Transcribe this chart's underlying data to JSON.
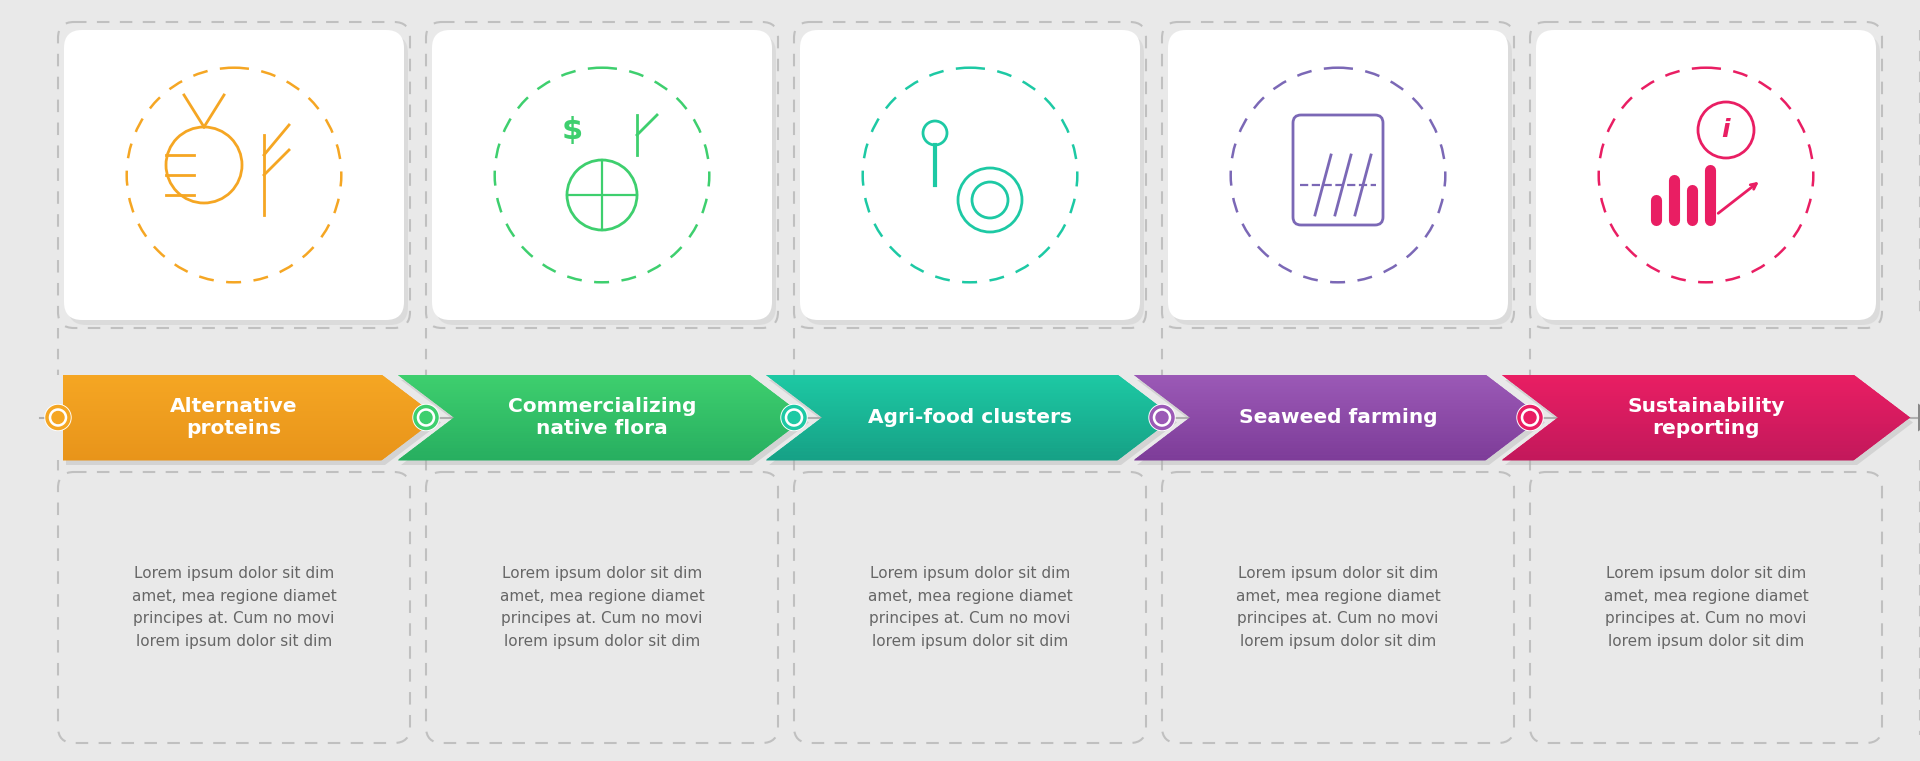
{
  "bg_color": "#e9e9e9",
  "steps": [
    {
      "title": "Alternative\nproteins",
      "color_top": "#f5a623",
      "color_bot": "#e8941a",
      "dot_color": "#f5a623",
      "icon_color": "#f5a623"
    },
    {
      "title": "Commercializing\nnative flora",
      "color_top": "#3ecf6e",
      "color_bot": "#27ae60",
      "dot_color": "#3ecf6e",
      "icon_color": "#3ecf6e"
    },
    {
      "title": "Agri-food clusters",
      "color_top": "#1dc9a4",
      "color_bot": "#16a085",
      "dot_color": "#1dc9a4",
      "icon_color": "#1dc9a4"
    },
    {
      "title": "Seaweed farming",
      "color_top": "#9b59b6",
      "color_bot": "#7d3c98",
      "dot_color": "#9b59b6",
      "icon_color": "#7b68b6"
    },
    {
      "title": "Sustainability\nreporting",
      "color_top": "#e91e63",
      "color_bot": "#c2185b",
      "dot_color": "#e91e63",
      "icon_color": "#e91e63"
    }
  ],
  "lorem_text": "Lorem ipsum dolor sit dim\namet, mea regione diamet\nprincipes at. Cum no movi\nlorem ipsum dolor sit dim",
  "n_steps": 5
}
